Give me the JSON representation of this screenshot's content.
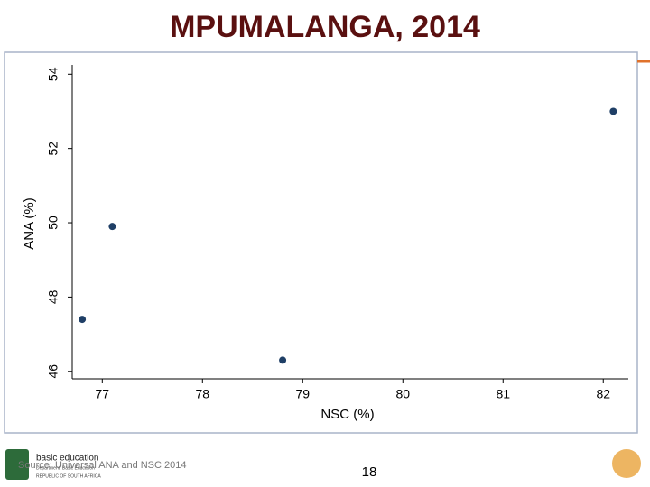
{
  "chart_data": {
    "type": "scatter",
    "title": "MPUMALANGA, 2014",
    "x_label": "NSC (%)",
    "y_label": "ANA (%)",
    "series": [
      {
        "color": "#1f3f66",
        "x": [
          76.8,
          77.1,
          78.8,
          82.1
        ],
        "values": [
          47.4,
          49.9,
          46.3,
          53.0
        ]
      }
    ],
    "xlim": [
      76.7,
      82.25
    ],
    "xticks": [
      77,
      78,
      79,
      80,
      81,
      82
    ],
    "ylim": [
      45.8,
      54.25
    ],
    "yticks": [
      46,
      48,
      50,
      52,
      54
    ],
    "grid": false
  },
  "slide": {
    "source": "Source: Universal ANA and NSC 2014",
    "page_number": "18",
    "logo_title": "basic education",
    "logo_dept": "Department: Basic Education",
    "logo_country": "REPUBLIC OF SOUTH AFRICA"
  }
}
